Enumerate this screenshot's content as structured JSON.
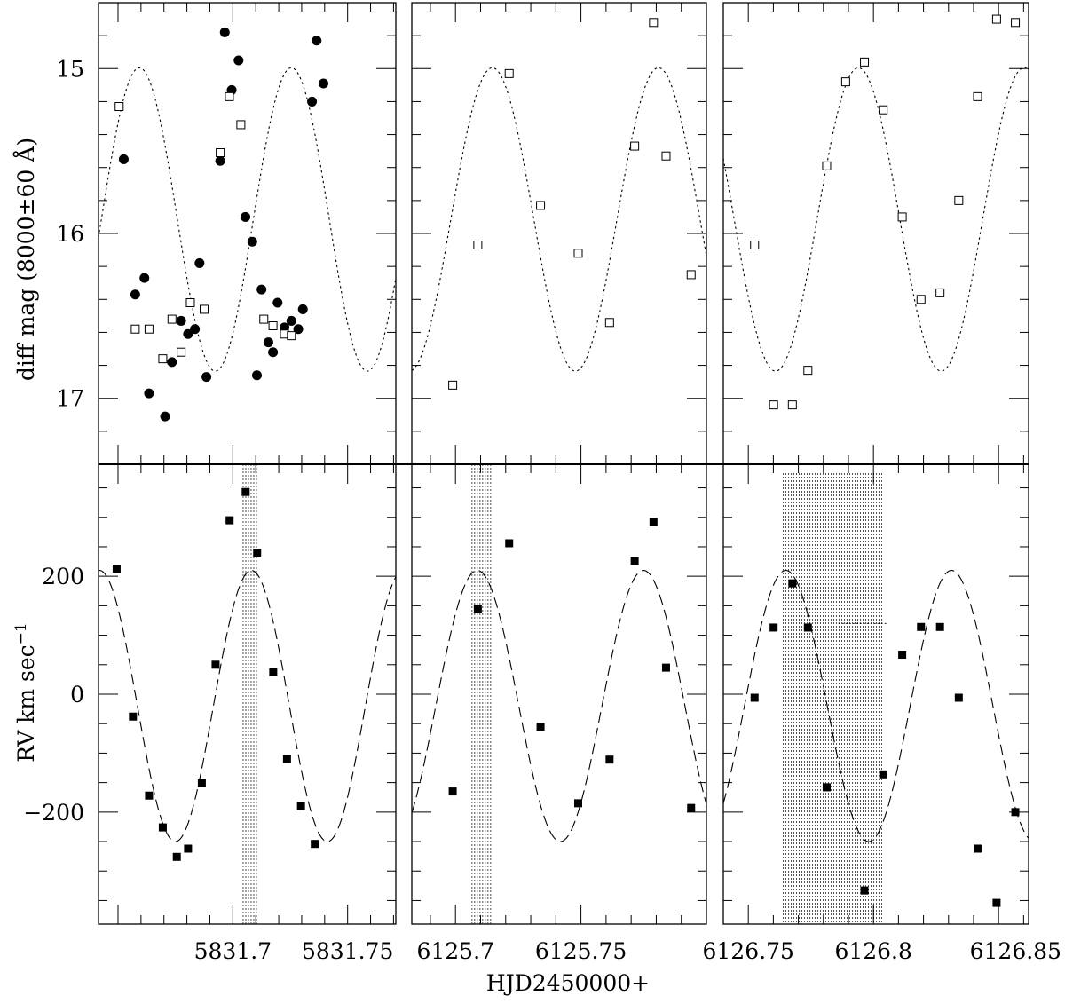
{
  "chart_data": [
    {
      "panel": "top-left",
      "type": "scatter",
      "ylabel": "diff mag (8000±60 Å)",
      "ylim": [
        17.4,
        14.6
      ],
      "xlim": [
        5831.6415,
        5831.771
      ],
      "y_ticks": [
        "15",
        "16",
        "17"
      ],
      "model": {
        "style": "dotted",
        "amplitude": 0.92,
        "mean": 15.915,
        "period": 0.0662,
        "peak_at": 5831.7255
      },
      "series": [
        {
          "marker": "filled-circle",
          "points": [
            [
              5831.6525,
              15.55
            ],
            [
              5831.6575,
              16.37
            ],
            [
              5831.6615,
              16.27
            ],
            [
              5831.6635,
              16.97
            ],
            [
              5831.6705,
              17.11
            ],
            [
              5831.6735,
              16.78
            ],
            [
              5831.6775,
              16.53
            ],
            [
              5831.6805,
              16.61
            ],
            [
              5831.6835,
              16.58
            ],
            [
              5831.6855,
              16.18
            ],
            [
              5831.6885,
              16.87
            ],
            [
              5831.6945,
              15.56
            ],
            [
              5831.6965,
              14.78
            ],
            [
              5831.6995,
              15.13
            ],
            [
              5831.7025,
              14.95
            ],
            [
              5831.7055,
              15.9
            ],
            [
              5831.7085,
              16.05
            ],
            [
              5831.7105,
              16.86
            ],
            [
              5831.7125,
              16.34
            ],
            [
              5831.7155,
              16.66
            ],
            [
              5831.7175,
              16.72
            ],
            [
              5831.7195,
              16.42
            ],
            [
              5831.7225,
              16.57
            ],
            [
              5831.7255,
              16.53
            ],
            [
              5831.7285,
              16.58
            ],
            [
              5831.7305,
              16.46
            ],
            [
              5831.7345,
              15.2
            ],
            [
              5831.7365,
              14.83
            ],
            [
              5831.7395,
              15.09
            ]
          ]
        },
        {
          "marker": "open-square",
          "points": [
            [
              5831.6505,
              15.23
            ],
            [
              5831.6575,
              16.58
            ],
            [
              5831.6635,
              16.58
            ],
            [
              5831.6695,
              16.76
            ],
            [
              5831.6735,
              16.52
            ],
            [
              5831.6775,
              16.72
            ],
            [
              5831.6815,
              16.42
            ],
            [
              5831.6875,
              16.46
            ],
            [
              5831.6945,
              15.51
            ],
            [
              5831.6985,
              15.17
            ],
            [
              5831.7035,
              15.34
            ],
            [
              5831.7135,
              16.52
            ],
            [
              5831.7175,
              16.56
            ],
            [
              5831.7225,
              16.61
            ],
            [
              5831.7255,
              16.62
            ]
          ]
        }
      ]
    },
    {
      "panel": "top-middle",
      "type": "scatter",
      "ylim": [
        17.4,
        14.6
      ],
      "xlim": [
        6125.6826,
        6125.8
      ],
      "model": {
        "style": "dotted",
        "amplitude": 0.92,
        "mean": 15.915,
        "period": 0.0662,
        "peak_at": 6125.7147
      },
      "series": [
        {
          "marker": "open-square",
          "points": [
            [
              6125.6989,
              16.92
            ],
            [
              6125.7089,
              16.07
            ],
            [
              6125.7214,
              15.03
            ],
            [
              6125.7339,
              15.83
            ],
            [
              6125.7489,
              16.12
            ],
            [
              6125.7614,
              16.54
            ],
            [
              6125.7714,
              15.47
            ],
            [
              6125.7789,
              14.72
            ],
            [
              6125.7839,
              15.53
            ],
            [
              6125.7939,
              16.25
            ]
          ]
        }
      ]
    },
    {
      "panel": "top-right",
      "type": "scatter",
      "ylim": [
        17.4,
        14.6
      ],
      "xlim": [
        6126.74,
        6126.862
      ],
      "model": {
        "style": "dotted",
        "amplitude": 0.92,
        "mean": 15.915,
        "period": 0.0662,
        "peak_at": 6126.794
      },
      "series": [
        {
          "marker": "open-square",
          "points": [
            [
              6126.7525,
              16.07
            ],
            [
              6126.7601,
              17.04
            ],
            [
              6126.7676,
              17.04
            ],
            [
              6126.7738,
              16.83
            ],
            [
              6126.7813,
              15.59
            ],
            [
              6126.7889,
              15.08
            ],
            [
              6126.7964,
              14.96
            ],
            [
              6126.8039,
              15.25
            ],
            [
              6126.8115,
              15.9
            ],
            [
              6126.819,
              16.4
            ],
            [
              6126.8266,
              16.36
            ],
            [
              6126.8341,
              15.8
            ],
            [
              6126.8416,
              15.17
            ],
            [
              6126.8492,
              14.7
            ],
            [
              6126.8567,
              14.72
            ]
          ]
        }
      ]
    },
    {
      "panel": "bottom-left",
      "type": "scatter",
      "ylabel": "RV km sec",
      "ylabel_superscript": "−1",
      "ylim": [
        -390,
        390
      ],
      "y_ticks": [
        "200",
        "0",
        "−200"
      ],
      "xlim": [
        5831.6415,
        5831.771
      ],
      "x_ticks": [
        "5831.7",
        "5831.75"
      ],
      "model": {
        "style": "dashed",
        "amplitude": 230,
        "mean": -20,
        "period": 0.0662,
        "peak_at": 5831.7081
      },
      "shaded_x": [
        5831.7045,
        5831.7105
      ],
      "series": [
        {
          "marker": "filled-square",
          "points": [
            [
              5831.6494,
              213
            ],
            [
              5831.6565,
              -38
            ],
            [
              5831.6635,
              -172
            ],
            [
              5831.6695,
              -226
            ],
            [
              5831.6756,
              -276
            ],
            [
              5831.6805,
              -262
            ],
            [
              5831.6865,
              -151
            ],
            [
              5831.6925,
              50
            ],
            [
              5831.6986,
              295
            ],
            [
              5831.7056,
              343
            ],
            [
              5831.7106,
              240
            ],
            [
              5831.7176,
              37
            ],
            [
              5831.7236,
              -110
            ],
            [
              5831.7297,
              -190
            ],
            [
              5831.7357,
              -254
            ]
          ]
        }
      ]
    },
    {
      "panel": "bottom-middle",
      "type": "scatter",
      "ylim": [
        -390,
        390
      ],
      "xlim": [
        6125.6826,
        6125.8
      ],
      "x_ticks": [
        "6125.7",
        "6125.75"
      ],
      "model": {
        "style": "dashed",
        "amplitude": 230,
        "mean": -20,
        "period": 0.0662,
        "peak_at": 6125.7087
      },
      "shaded_x": [
        6125.7066,
        6125.7149
      ],
      "series": [
        {
          "marker": "filled-square",
          "points": [
            [
              6125.6989,
              -165
            ],
            [
              6125.7089,
              145
            ],
            [
              6125.7214,
              256
            ],
            [
              6125.7339,
              -55
            ],
            [
              6125.7489,
              -185
            ],
            [
              6125.7614,
              -111
            ],
            [
              6125.7714,
              226
            ],
            [
              6125.7789,
              292
            ],
            [
              6125.7839,
              45
            ],
            [
              6125.7939,
              -193
            ]
          ]
        }
      ]
    },
    {
      "panel": "bottom-right",
      "type": "scatter",
      "ylim": [
        -390,
        390
      ],
      "xlim": [
        6126.74,
        6126.862
      ],
      "x_ticks": [
        "6126.75",
        "6126.8",
        "6126.85"
      ],
      "model": {
        "style": "dashed",
        "amplitude": 230,
        "mean": -20,
        "period": 0.0662,
        "peak_at": 6126.765
      },
      "shaded_x": [
        6126.764,
        6126.8036
      ],
      "series": [
        {
          "marker": "filled-square",
          "points": [
            [
              6126.7525,
              -6
            ],
            [
              6126.7601,
              113
            ],
            [
              6126.7676,
              188
            ],
            [
              6126.7738,
              113
            ],
            [
              6126.7813,
              -158
            ],
            [
              6126.7964,
              -333
            ],
            [
              6126.8039,
              -136
            ],
            [
              6126.8115,
              67
            ],
            [
              6126.819,
              114
            ],
            [
              6126.8266,
              114
            ],
            [
              6126.8341,
              -6
            ],
            [
              6126.8416,
              -262
            ],
            [
              6126.8492,
              -354
            ],
            [
              6126.8567,
              -200
            ]
          ]
        }
      ]
    }
  ],
  "xlabel": "HJD2450000+"
}
